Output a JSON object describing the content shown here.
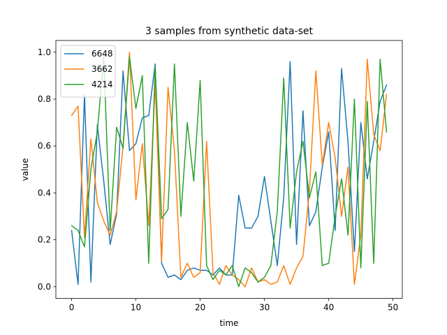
{
  "chart_data": {
    "type": "line",
    "title": "3 samples from synthetic data-set",
    "xlabel": "time",
    "ylabel": "value",
    "xlim": [
      -2.45,
      51.45
    ],
    "ylim": [
      -0.05,
      1.05
    ],
    "xticks": [
      0,
      10,
      20,
      30,
      40,
      50
    ],
    "yticks": [
      0.0,
      0.2,
      0.4,
      0.6,
      0.8,
      1.0
    ],
    "xtick_labels": [
      "0",
      "10",
      "20",
      "30",
      "40",
      "50"
    ],
    "ytick_labels": [
      "0.0",
      "0.2",
      "0.4",
      "0.6",
      "0.8",
      "1.0"
    ],
    "grid": false,
    "legend_position": "upper-left",
    "x": [
      0,
      1,
      2,
      3,
      4,
      5,
      6,
      7,
      8,
      9,
      10,
      11,
      12,
      13,
      14,
      15,
      16,
      17,
      18,
      19,
      20,
      21,
      22,
      23,
      24,
      25,
      26,
      27,
      28,
      29,
      30,
      31,
      32,
      33,
      34,
      35,
      36,
      37,
      38,
      39,
      40,
      41,
      42,
      43,
      44,
      45,
      46,
      47,
      48,
      49
    ],
    "series": [
      {
        "name": "6648",
        "color": "#1f77b4",
        "values": [
          0.24,
          0.01,
          0.82,
          0.02,
          0.69,
          0.45,
          0.18,
          0.31,
          0.92,
          0.58,
          0.61,
          0.72,
          0.73,
          0.95,
          0.1,
          0.04,
          0.05,
          0.03,
          0.07,
          0.08,
          0.07,
          0.07,
          0.05,
          0.08,
          0.05,
          0.05,
          0.39,
          0.25,
          0.25,
          0.3,
          0.47,
          0.28,
          0.09,
          0.38,
          0.96,
          0.18,
          0.75,
          0.26,
          0.32,
          0.51,
          0.66,
          0.24,
          0.93,
          0.62,
          0.15,
          0.7,
          0.46,
          0.62,
          0.79,
          0.86
        ]
      },
      {
        "name": "3662",
        "color": "#ff7f0e",
        "values": [
          0.73,
          0.77,
          0.21,
          0.63,
          0.36,
          0.28,
          0.22,
          0.32,
          0.6,
          1.0,
          0.37,
          0.61,
          0.26,
          0.87,
          0.11,
          0.85,
          0.58,
          0.04,
          0.1,
          0.04,
          0.06,
          0.62,
          0.06,
          0.01,
          0.09,
          0.05,
          0.03,
          0.0,
          0.08,
          0.02,
          0.03,
          0.01,
          0.02,
          0.09,
          0.01,
          0.08,
          0.13,
          0.41,
          0.92,
          0.52,
          0.7,
          0.55,
          0.3,
          0.51,
          0.01,
          0.22,
          0.97,
          0.65,
          0.58,
          0.82
        ]
      },
      {
        "name": "4214",
        "color": "#2ca02c",
        "values": [
          0.26,
          0.24,
          0.17,
          0.5,
          0.66,
          0.98,
          0.24,
          0.68,
          0.59,
          0.98,
          0.76,
          0.9,
          0.1,
          0.94,
          0.29,
          0.33,
          0.95,
          0.3,
          0.7,
          0.45,
          0.88,
          0.09,
          0.03,
          0.07,
          0.05,
          0.09,
          0.0,
          0.08,
          0.06,
          0.02,
          0.04,
          0.09,
          0.32,
          0.89,
          0.25,
          0.49,
          0.62,
          0.38,
          0.49,
          0.09,
          0.1,
          0.3,
          0.46,
          0.22,
          0.8,
          0.08,
          0.79,
          0.1,
          0.97,
          0.66
        ]
      }
    ]
  }
}
